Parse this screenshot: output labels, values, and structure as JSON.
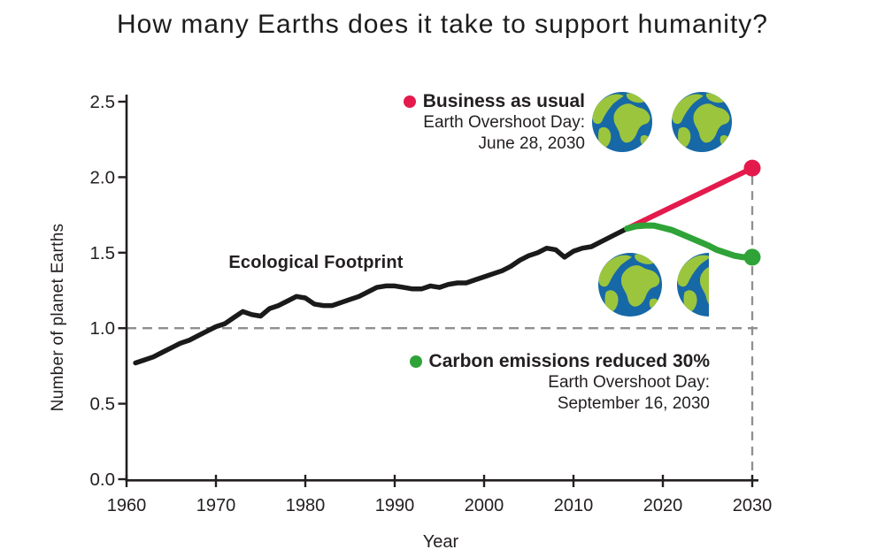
{
  "title": "How many Earths does it take to support humanity?",
  "chart_data": {
    "type": "line",
    "title": "How many Earths does it take to support humanity?",
    "xlabel": "Year",
    "ylabel": "Number of planet Earths",
    "xlim": [
      1960,
      2030
    ],
    "ylim": [
      0.0,
      2.5
    ],
    "x_ticks": [
      1960,
      1970,
      1980,
      1990,
      2000,
      2010,
      2020,
      2030
    ],
    "y_ticks": [
      "0.0",
      "0.5",
      "1.0",
      "1.5",
      "2.0",
      "2.5"
    ],
    "grid": false,
    "overshoot_reference_y": 1.0,
    "projection_reference_x": 2030,
    "series": [
      {
        "name": "Ecological Footprint",
        "color": "#1a1a1a",
        "endpoint_marker": false,
        "points": [
          [
            1961,
            0.77
          ],
          [
            1962,
            0.79
          ],
          [
            1963,
            0.81
          ],
          [
            1964,
            0.84
          ],
          [
            1965,
            0.87
          ],
          [
            1966,
            0.9
          ],
          [
            1967,
            0.92
          ],
          [
            1968,
            0.95
          ],
          [
            1969,
            0.98
          ],
          [
            1970,
            1.01
          ],
          [
            1971,
            1.03
          ],
          [
            1972,
            1.07
          ],
          [
            1973,
            1.11
          ],
          [
            1974,
            1.09
          ],
          [
            1975,
            1.08
          ],
          [
            1976,
            1.13
          ],
          [
            1977,
            1.15
          ],
          [
            1978,
            1.18
          ],
          [
            1979,
            1.21
          ],
          [
            1980,
            1.2
          ],
          [
            1981,
            1.16
          ],
          [
            1982,
            1.15
          ],
          [
            1983,
            1.15
          ],
          [
            1984,
            1.17
          ],
          [
            1985,
            1.19
          ],
          [
            1986,
            1.21
          ],
          [
            1987,
            1.24
          ],
          [
            1988,
            1.27
          ],
          [
            1989,
            1.28
          ],
          [
            1990,
            1.28
          ],
          [
            1991,
            1.27
          ],
          [
            1992,
            1.26
          ],
          [
            1993,
            1.26
          ],
          [
            1994,
            1.28
          ],
          [
            1995,
            1.27
          ],
          [
            1996,
            1.29
          ],
          [
            1997,
            1.3
          ],
          [
            1998,
            1.3
          ],
          [
            1999,
            1.32
          ],
          [
            2000,
            1.34
          ],
          [
            2001,
            1.36
          ],
          [
            2002,
            1.38
          ],
          [
            2003,
            1.41
          ],
          [
            2004,
            1.45
          ],
          [
            2005,
            1.48
          ],
          [
            2006,
            1.5
          ],
          [
            2007,
            1.53
          ],
          [
            2008,
            1.52
          ],
          [
            2009,
            1.47
          ],
          [
            2010,
            1.51
          ],
          [
            2011,
            1.53
          ],
          [
            2012,
            1.54
          ],
          [
            2013,
            1.57
          ],
          [
            2014,
            1.6
          ],
          [
            2015,
            1.63
          ],
          [
            2016,
            1.66
          ]
        ]
      },
      {
        "name": "Business as usual",
        "color": "#E41A4C",
        "endpoint_marker": true,
        "points": [
          [
            2016,
            1.66
          ],
          [
            2030,
            2.06
          ]
        ]
      },
      {
        "name": "Carbon emissions reduced 30%",
        "color": "#2FA337",
        "endpoint_marker": true,
        "points": [
          [
            2016,
            1.66
          ],
          [
            2017,
            1.675
          ],
          [
            2018,
            1.68
          ],
          [
            2019,
            1.68
          ],
          [
            2020,
            1.665
          ],
          [
            2021,
            1.65
          ],
          [
            2022,
            1.625
          ],
          [
            2023,
            1.6
          ],
          [
            2024,
            1.575
          ],
          [
            2025,
            1.55
          ],
          [
            2026,
            1.52
          ],
          [
            2027,
            1.5
          ],
          [
            2028,
            1.48
          ],
          [
            2029,
            1.47
          ],
          [
            2030,
            1.47
          ]
        ]
      }
    ]
  },
  "annotations": {
    "footprint_label": "Ecological Footprint",
    "business_as_usual": {
      "label": "Business as usual",
      "subline1": "Earth Overshoot Day:",
      "subline2": "June 28, 2030",
      "bullet_color": "#E41A4C",
      "earth_icons": 2
    },
    "carbon_reduced": {
      "label": "Carbon emissions reduced 30%",
      "subline1": "Earth Overshoot Day:",
      "subline2": "September 16, 2030",
      "bullet_color": "#2FA337",
      "earth_icons": 1.5
    }
  },
  "colors": {
    "axis": "#231f20",
    "dashed_line": "#8f8f8f",
    "black_line": "#1a1a1a",
    "red_line": "#E41A4C",
    "green_line": "#2FA337",
    "earth_ocean": "#1768A6",
    "earth_land": "#9CC53E"
  }
}
